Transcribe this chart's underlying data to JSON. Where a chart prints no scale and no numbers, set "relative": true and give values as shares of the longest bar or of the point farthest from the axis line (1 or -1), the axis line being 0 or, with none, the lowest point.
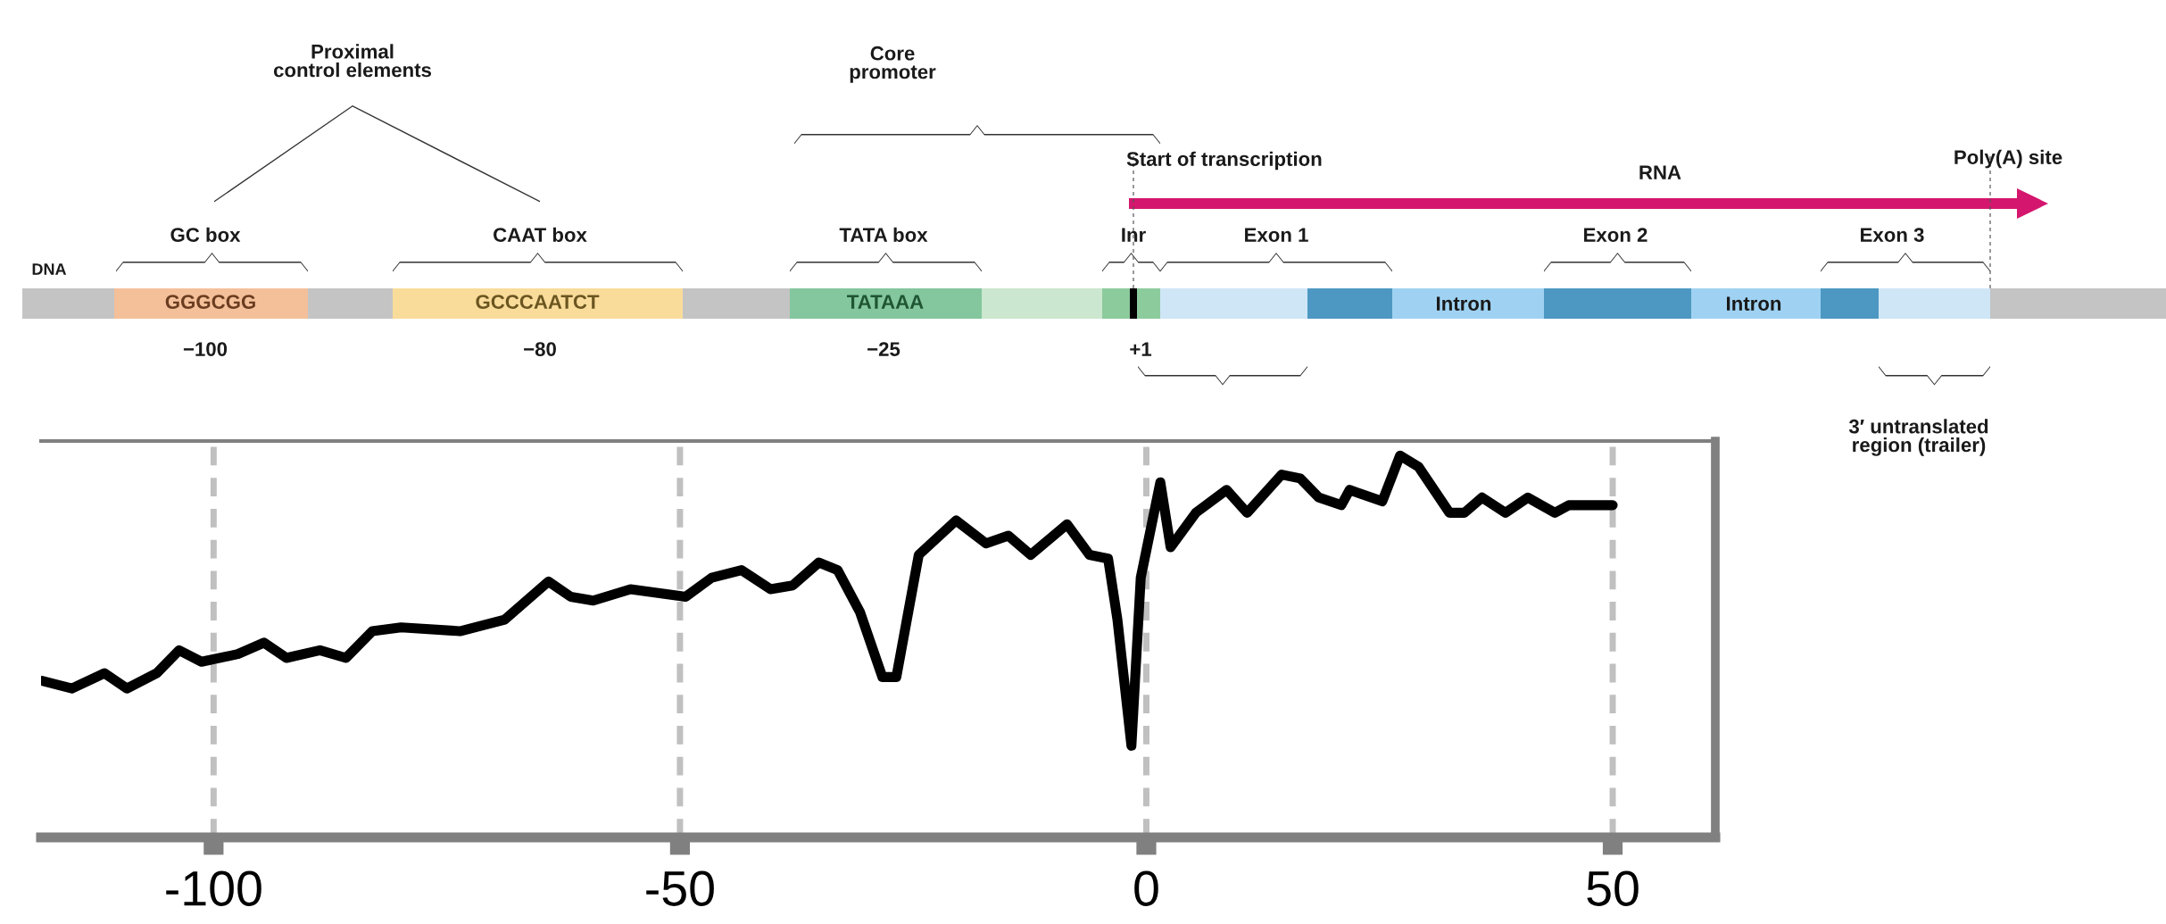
{
  "chart_data": [
    {
      "type": "other",
      "annotations": [
        "Proximal\ncontrol elements",
        "Core\npromoter",
        "Start of transcription",
        "RNA",
        "Poly(A) site",
        "DNA",
        "GC box",
        "CAAT box",
        "TATA box",
        "Inr",
        "Exon 1",
        "Exon 2",
        "Exon 3",
        "GGGCGG",
        "GCCCAATCT",
        "TATAAA",
        "Intron",
        "Intron",
        "−100",
        "−80",
        "−25",
        "+1",
        "3′ untranslated\nregion (trailer)"
      ]
    },
    {
      "type": "line",
      "relative": true,
      "grid": "x",
      "xlim": [
        -118.5,
        61
      ],
      "xticks": [
        -100,
        -50,
        0,
        50
      ],
      "series": [
        {
          "color": "#000000",
          "x": [
            -118.4,
            -115.2,
            -111.7,
            -109.3,
            -106.1,
            -103.7,
            -101.3,
            -97.4,
            -94.6,
            -92.2,
            -88.6,
            -85.8,
            -83.0,
            -79.9,
            -73.6,
            -68.8,
            -64.1,
            -61.7,
            -59.3,
            -55.3,
            -49.4,
            -46.6,
            -43.4,
            -40.3,
            -37.9,
            -35.1,
            -33.1,
            -30.7,
            -28.3,
            -26.8,
            -24.4,
            -20.4,
            -17.2,
            -14.8,
            -12.4,
            -8.5,
            -6.1,
            -4.1,
            -3.1,
            -1.6,
            -0.6,
            1.5,
            2.6,
            5.3,
            8.6,
            10.8,
            14.5,
            16.5,
            18.5,
            20.9,
            21.8,
            25.3,
            27.2,
            29.2,
            32.5,
            34.1,
            36.0,
            38.5,
            40.9,
            43.8,
            45.3,
            50.0
          ],
          "values": [
            0.41,
            0.39,
            0.43,
            0.39,
            0.43,
            0.49,
            0.46,
            0.48,
            0.51,
            0.47,
            0.49,
            0.47,
            0.54,
            0.55,
            0.54,
            0.57,
            0.67,
            0.63,
            0.62,
            0.65,
            0.63,
            0.68,
            0.7,
            0.65,
            0.66,
            0.72,
            0.7,
            0.59,
            0.42,
            0.42,
            0.74,
            0.83,
            0.77,
            0.79,
            0.74,
            0.82,
            0.74,
            0.73,
            0.57,
            0.24,
            0.68,
            0.93,
            0.76,
            0.85,
            0.91,
            0.85,
            0.95,
            0.94,
            0.89,
            0.87,
            0.91,
            0.88,
            1.0,
            0.97,
            0.85,
            0.85,
            0.89,
            0.85,
            0.89,
            0.85,
            0.87,
            0.87
          ]
        }
      ]
    }
  ]
}
